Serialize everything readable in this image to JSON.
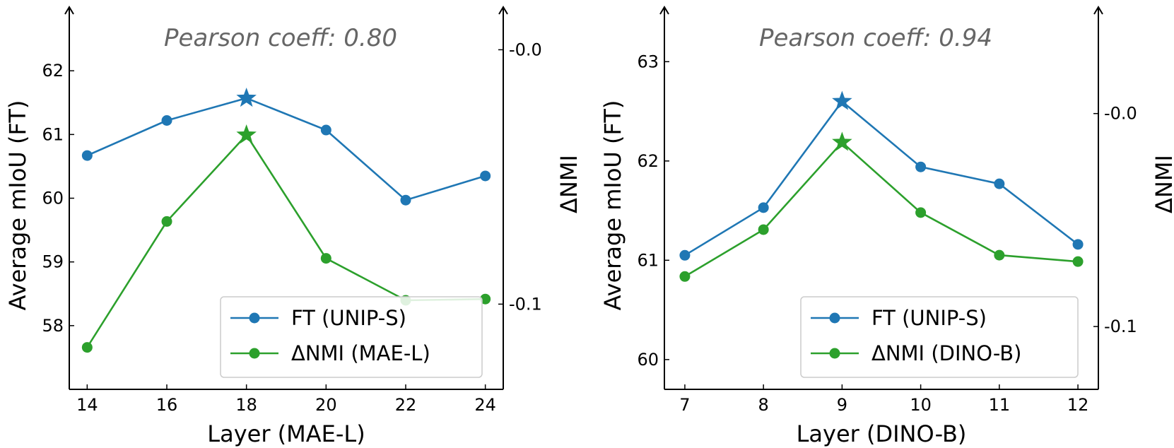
{
  "colors": {
    "ft": "#1f77b4",
    "nmi": "#2ca02c",
    "annotation": "#666666"
  },
  "chart_data": [
    {
      "type": "line",
      "xlabel": "Layer (MAE-L)",
      "ylabel": "Average mIoU (FT)",
      "y2label": "ΔNMI",
      "annotation": "Pearson coeff: 0.80",
      "x": [
        14,
        16,
        18,
        20,
        22,
        24
      ],
      "xticks": [
        14,
        16,
        18,
        20,
        22,
        24
      ],
      "xlim": [
        13.55,
        24.45
      ],
      "ylim": [
        57.0,
        63.0
      ],
      "yticks": [
        58,
        59,
        60,
        61,
        62
      ],
      "y2lim": [
        -0.1335,
        0.01678
      ],
      "y2ticks": [
        -0.1,
        -0.0
      ],
      "y2ticklabels": [
        "-0.1",
        "-0.0"
      ],
      "legend_loc": "lower-right",
      "series": [
        {
          "name": "FT (UNIP-S)",
          "axis": "left",
          "color_key": "ft",
          "values": [
            60.67,
            61.22,
            61.57,
            61.07,
            59.97,
            60.35
          ],
          "best_index": 2
        },
        {
          "name": "ΔNMI (MAE-L)",
          "axis": "right",
          "color_key": "nmi",
          "values": [
            -0.117,
            -0.0675,
            -0.0335,
            -0.082,
            -0.0985,
            -0.098
          ],
          "best_index": 2
        }
      ]
    },
    {
      "type": "line",
      "xlabel": "Layer (DINO-B)",
      "ylabel": "Average mIoU (FT)",
      "y2label": "ΔNMI",
      "annotation": "Pearson coeff: 0.94",
      "x": [
        7,
        8,
        9,
        10,
        11,
        12
      ],
      "xticks": [
        7,
        8,
        9,
        10,
        11,
        12
      ],
      "xlim": [
        6.74,
        12.26
      ],
      "ylim": [
        59.7,
        63.55
      ],
      "yticks": [
        60,
        61,
        62,
        63
      ],
      "y2lim": [
        -0.1295,
        0.05
      ],
      "y2ticks": [
        -0.1,
        -0.0
      ],
      "y2ticklabels": [
        "-0.1",
        "-0.0"
      ],
      "legend_loc": "lower-right",
      "series": [
        {
          "name": "FT (UNIP-S)",
          "axis": "left",
          "color_key": "ft",
          "values": [
            61.05,
            61.53,
            62.6,
            61.94,
            61.77,
            61.16
          ],
          "best_index": 2
        },
        {
          "name": "ΔNMI (DINO-B)",
          "axis": "right",
          "color_key": "nmi",
          "values": [
            -0.0765,
            -0.0545,
            -0.0135,
            -0.0465,
            -0.0665,
            -0.0695
          ],
          "best_index": 2
        }
      ]
    }
  ]
}
